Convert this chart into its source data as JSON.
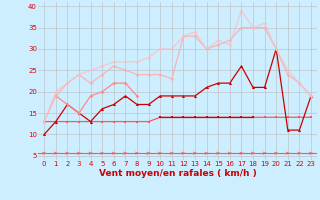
{
  "title": "",
  "xlabel": "Vent moyen/en rafales ( km/h )",
  "bg_color": "#cceeff",
  "grid_color": "#bbbbbb",
  "x": [
    0,
    1,
    2,
    3,
    4,
    5,
    6,
    7,
    8,
    9,
    10,
    11,
    12,
    13,
    14,
    15,
    16,
    17,
    18,
    19,
    20,
    21,
    22,
    23
  ],
  "series": [
    {
      "color": "#ff5555",
      "alpha": 1.0,
      "linewidth": 0.9,
      "marker": "s",
      "markersize": 1.8,
      "y": [
        13,
        13,
        13,
        13,
        13,
        13,
        13,
        13,
        13,
        13,
        14,
        14,
        14,
        14,
        14,
        14,
        14,
        14,
        14,
        14,
        14,
        14,
        14,
        14
      ]
    },
    {
      "color": "#cc0000",
      "alpha": 1.0,
      "linewidth": 0.9,
      "marker": "s",
      "markersize": 1.8,
      "y": [
        null,
        null,
        null,
        null,
        null,
        null,
        null,
        null,
        null,
        null,
        14,
        14,
        14,
        14,
        14,
        14,
        14,
        14,
        14,
        null,
        null,
        null,
        null,
        null
      ]
    },
    {
      "color": "#cc0000",
      "alpha": 1.0,
      "linewidth": 0.9,
      "marker": "^",
      "markersize": 2.2,
      "y": [
        10,
        13,
        17,
        15,
        13,
        16,
        17,
        19,
        17,
        17,
        19,
        19,
        19,
        19,
        21,
        22,
        22,
        26,
        21,
        21,
        30,
        11,
        11,
        19
      ]
    },
    {
      "color": "#ff8888",
      "alpha": 1.0,
      "linewidth": 0.9,
      "marker": "D",
      "markersize": 1.8,
      "y": [
        null,
        19,
        17,
        15,
        19,
        20,
        22,
        22,
        19,
        null,
        null,
        null,
        null,
        null,
        null,
        null,
        null,
        null,
        null,
        null,
        null,
        null,
        null,
        null
      ]
    },
    {
      "color": "#ffaaaa",
      "alpha": 0.85,
      "linewidth": 0.9,
      "marker": "D",
      "markersize": 1.8,
      "y": [
        13,
        19,
        22,
        24,
        22,
        24,
        26,
        25,
        24,
        24,
        24,
        23,
        33,
        33,
        30,
        31,
        32,
        35,
        35,
        35,
        30,
        24,
        22,
        19
      ]
    },
    {
      "color": "#ffbbbb",
      "alpha": 0.75,
      "linewidth": 0.9,
      "marker": "D",
      "markersize": 1.8,
      "y": [
        13,
        20,
        22,
        24,
        25,
        26,
        27,
        27,
        27,
        28,
        30,
        30,
        33,
        34,
        30,
        32,
        31,
        39,
        35,
        36,
        30,
        25,
        22,
        19
      ]
    }
  ],
  "arrow_color": "#ff5555",
  "ylim": [
    4,
    41
  ],
  "yticks": [
    5,
    10,
    15,
    20,
    25,
    30,
    35,
    40
  ],
  "xlim": [
    -0.5,
    23.5
  ],
  "xticks": [
    0,
    1,
    2,
    3,
    4,
    5,
    6,
    7,
    8,
    9,
    10,
    11,
    12,
    13,
    14,
    15,
    16,
    17,
    18,
    19,
    20,
    21,
    22,
    23
  ],
  "tick_color": "#dd0000",
  "xlabel_color": "#cc0000",
  "xlabel_fontsize": 6.5,
  "tick_fontsize": 5.0
}
